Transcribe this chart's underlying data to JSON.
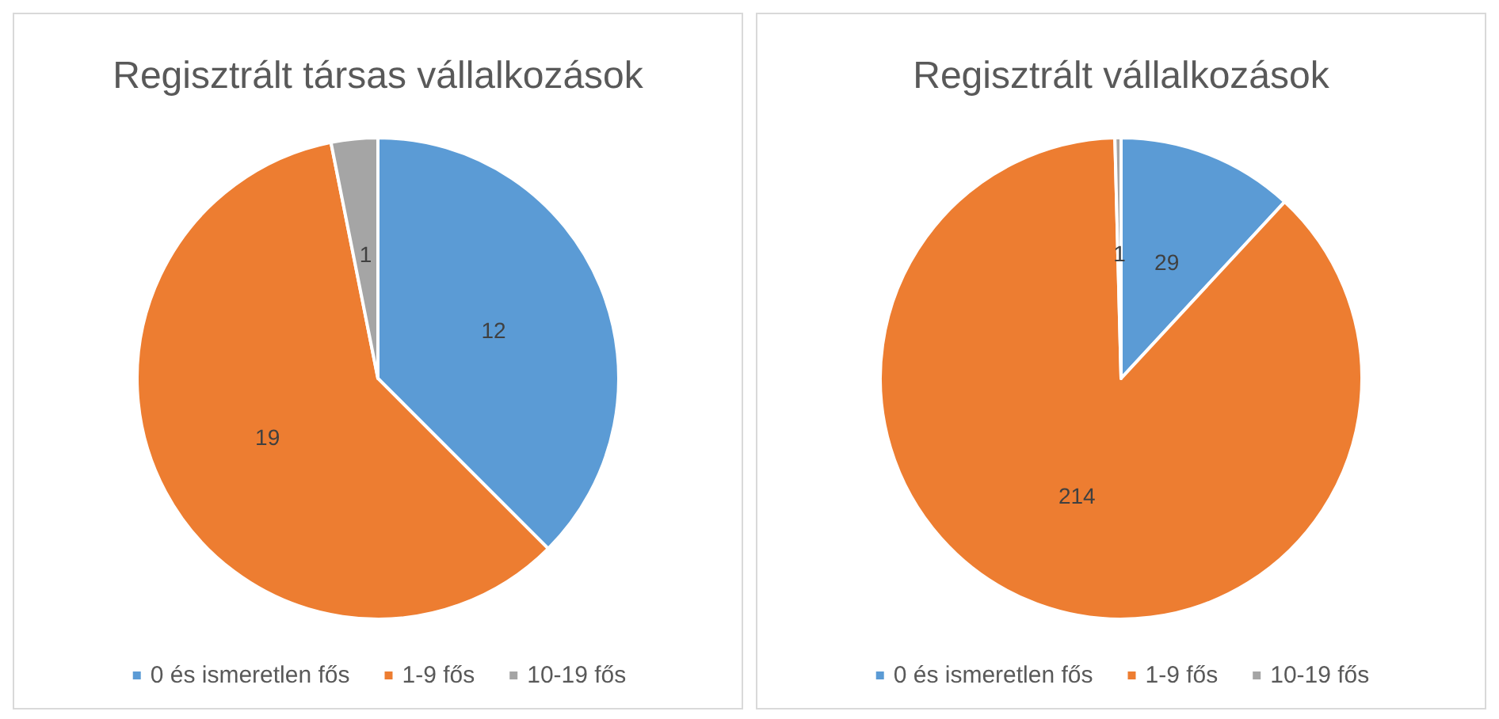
{
  "chart_data": [
    {
      "type": "pie",
      "title": "Regisztrált társas vállalkozások",
      "categories": [
        "0 és ismeretlen fős",
        "1-9 fős",
        "10-19 fős"
      ],
      "values": [
        12,
        19,
        1
      ],
      "colors": [
        "#5b9bd5",
        "#ed7d31",
        "#a5a5a5"
      ],
      "data_labels": true,
      "legend": "bottom"
    },
    {
      "type": "pie",
      "title": "Regisztrált vállalkozások",
      "categories": [
        "0 és ismeretlen fős",
        "1-9 fős",
        "10-19 fős"
      ],
      "values": [
        29,
        214,
        1
      ],
      "colors": [
        "#5b9bd5",
        "#ed7d31",
        "#a5a5a5"
      ],
      "data_labels": true,
      "legend": "bottom"
    }
  ]
}
